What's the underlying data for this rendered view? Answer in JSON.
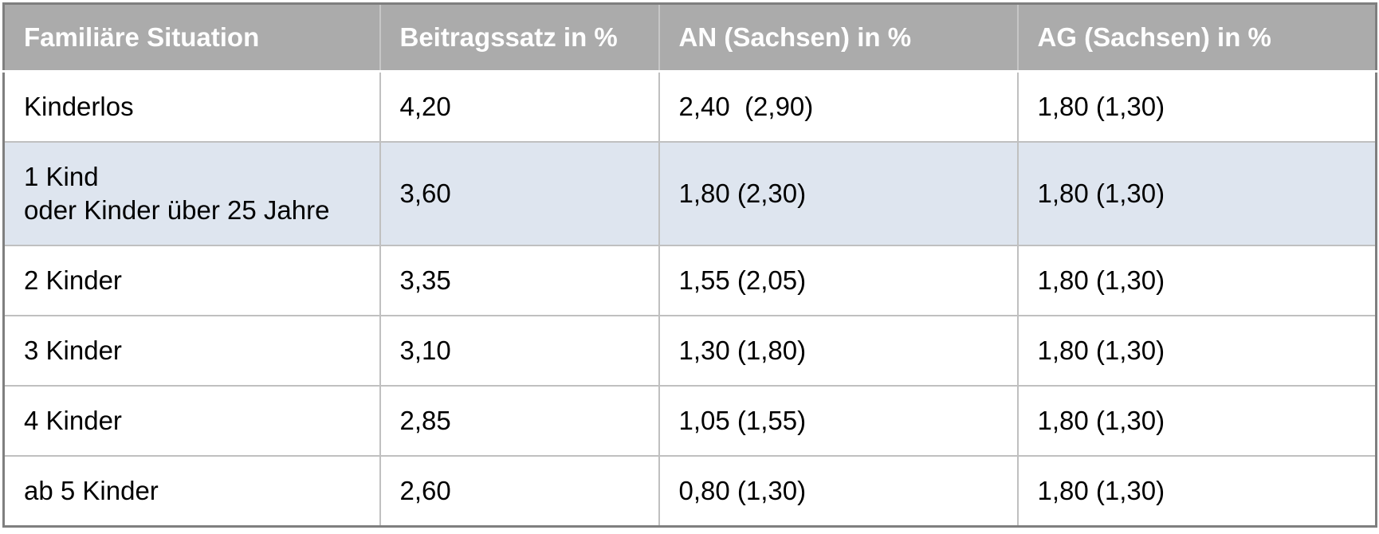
{
  "table": {
    "columns": [
      {
        "label": "Familiäre Situation"
      },
      {
        "label": "Beitragssatz in %"
      },
      {
        "label": "AN (Sachsen) in %"
      },
      {
        "label": "AG (Sachsen) in %"
      }
    ],
    "rows": [
      {
        "situation": "Kinderlos",
        "beitragssatz": "4,20",
        "an": "2,40  (2,90)",
        "ag": "1,80 (1,30)",
        "highlighted": false
      },
      {
        "situation": "1 Kind\noder Kinder über 25 Jahre",
        "beitragssatz": "3,60",
        "an": "1,80 (2,30)",
        "ag": "1,80 (1,30)",
        "highlighted": true
      },
      {
        "situation": "2 Kinder",
        "beitragssatz": "3,35",
        "an": "1,55 (2,05)",
        "ag": "1,80 (1,30)",
        "highlighted": false
      },
      {
        "situation": "3 Kinder",
        "beitragssatz": "3,10",
        "an": "1,30 (1,80)",
        "ag": "1,80 (1,30)",
        "highlighted": false
      },
      {
        "situation": "4 Kinder",
        "beitragssatz": "2,85",
        "an": "1,05 (1,55)",
        "ag": "1,80 (1,30)",
        "highlighted": false
      },
      {
        "situation": "ab 5 Kinder",
        "beitragssatz": "2,60",
        "an": "0,80 (1,30)",
        "ag": "1,80 (1,30)",
        "highlighted": false
      }
    ]
  },
  "colors": {
    "header_bg": "#ababab",
    "header_text": "#ffffff",
    "highlight_row_bg": "#dee5ef",
    "grid_line": "#c0c0c0",
    "outer_border": "#7f7f7f",
    "body_text": "#000000"
  }
}
